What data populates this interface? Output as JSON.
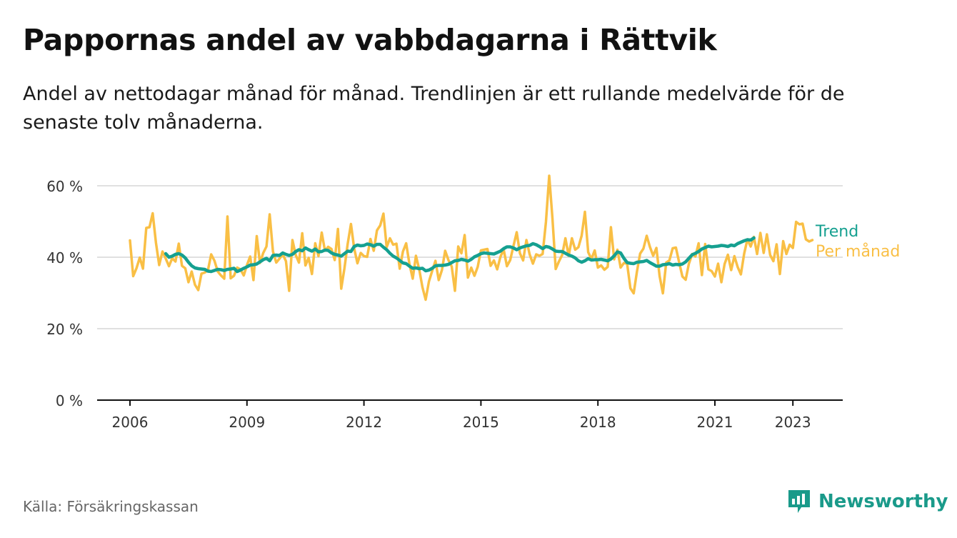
{
  "header": {
    "title": "Pappornas andel av vabbdagarna i Rättvik",
    "subtitle": "Andel av nettodagar månad för månad. Trendlinjen är ett rullande medelvärde för de senaste tolv månaderna."
  },
  "footer": {
    "source": "Källa: Försäkringskassan",
    "brand": "Newsworthy",
    "brand_icon": "newsworthy-logo-icon",
    "brand_color": "#1a9a8a"
  },
  "chart_data": {
    "type": "line",
    "title": "Pappornas andel av vabbdagarna i Rättvik",
    "xlabel": "",
    "ylabel": "",
    "x_range": [
      "2006-01",
      "2023-06"
    ],
    "ylim": [
      0,
      70
    ],
    "y_ticks": [
      0,
      20,
      40,
      60
    ],
    "y_tick_labels": [
      "0 %",
      "20 %",
      "40 %",
      "60 %"
    ],
    "x_ticks": [
      2006,
      2009,
      2012,
      2015,
      2018,
      2021,
      2023
    ],
    "x_tick_labels": [
      "2006",
      "2009",
      "2012",
      "2015",
      "2018",
      "2021",
      "2023"
    ],
    "grid": "horizontal",
    "legend": "end-of-line labels, right",
    "series": [
      {
        "name": "Trend",
        "color": "#15a090",
        "start": "2006-12",
        "values": [
          41.0,
          40.0,
          40.3,
          40.8,
          41.0,
          40.6,
          39.8,
          38.6,
          37.6,
          37.0,
          36.8,
          36.7,
          36.6,
          36.1,
          36.0,
          36.3,
          36.6,
          36.5,
          36.3,
          36.6,
          36.7,
          36.9,
          36.0,
          36.4,
          36.9,
          37.3,
          37.8,
          37.9,
          38.1,
          38.7,
          39.3,
          39.7,
          39.0,
          40.5,
          40.6,
          40.5,
          41.2,
          40.8,
          40.5,
          40.8,
          41.6,
          42.1,
          41.8,
          42.6,
          42.1,
          41.7,
          42.3,
          41.5,
          41.6,
          42.0,
          41.9,
          41.2,
          40.8,
          40.6,
          40.3,
          41.0,
          41.7,
          41.6,
          43.0,
          43.4,
          43.2,
          43.3,
          43.7,
          43.5,
          43.1,
          43.6,
          43.6,
          42.8,
          42.1,
          41.1,
          40.3,
          39.8,
          39.1,
          38.4,
          38.2,
          37.5,
          36.9,
          37.0,
          36.8,
          36.9,
          36.2,
          36.4,
          36.9,
          37.6,
          37.7,
          37.7,
          37.8,
          38.0,
          38.5,
          39.0,
          39.1,
          39.4,
          39.2,
          38.9,
          39.4,
          40.1,
          40.5,
          41.0,
          41.2,
          41.1,
          41.0,
          40.9,
          41.3,
          41.7,
          42.4,
          42.9,
          42.9,
          42.6,
          42.1,
          42.6,
          42.9,
          43.2,
          43.3,
          43.8,
          43.5,
          43.0,
          42.4,
          43.0,
          42.8,
          42.3,
          41.7,
          41.6,
          41.6,
          41.1,
          40.6,
          40.3,
          39.8,
          39.0,
          38.6,
          39.0,
          39.6,
          39.2,
          39.3,
          39.3,
          39.4,
          39.2,
          39.0,
          39.5,
          40.4,
          41.5,
          41.2,
          39.7,
          38.5,
          38.3,
          38.2,
          38.6,
          38.7,
          38.8,
          39.1,
          38.5,
          38.0,
          37.5,
          37.5,
          37.9,
          38.0,
          38.2,
          37.8,
          38.0,
          37.9,
          38.1,
          38.7,
          39.7,
          40.7,
          41.1,
          41.6,
          42.3,
          42.7,
          43.1,
          42.9,
          43.0,
          43.1,
          43.3,
          43.2,
          43.0,
          43.4,
          43.2,
          43.8,
          44.2,
          44.6,
          44.9,
          44.8,
          45.4
        ]
      },
      {
        "name": "Per månad",
        "color": "#f9bf45",
        "start": "2006-01",
        "values": [
          44.7,
          34.7,
          36.9,
          39.9,
          36.8,
          48.2,
          48.4,
          52.3,
          44.0,
          37.8,
          41.6,
          39.6,
          37.5,
          39.7,
          38.8,
          43.8,
          37.6,
          36.9,
          33.0,
          36.0,
          32.3,
          30.8,
          35.4,
          35.7,
          36.4,
          40.8,
          39.0,
          36.0,
          34.9,
          34.0,
          51.4,
          34.1,
          34.8,
          37.1,
          36.6,
          34.9,
          37.8,
          40.2,
          33.6,
          45.9,
          38.4,
          41.2,
          43.0,
          52.0,
          41.6,
          38.5,
          39.6,
          40.8,
          38.9,
          30.6,
          44.8,
          40.6,
          38.5,
          46.7,
          37.7,
          39.8,
          35.3,
          43.9,
          40.3,
          46.9,
          41.8,
          42.9,
          42.3,
          39.2,
          47.9,
          31.2,
          36.9,
          43.7,
          49.3,
          42.5,
          38.3,
          41.2,
          40.3,
          40.1,
          45.1,
          41.8,
          47.5,
          48.9,
          52.2,
          42.8,
          45.3,
          43.5,
          43.8,
          36.8,
          41.6,
          43.9,
          38.1,
          34.0,
          40.4,
          36.6,
          31.6,
          28.1,
          33.2,
          36.2,
          39.0,
          33.6,
          36.4,
          41.8,
          39.2,
          37.4,
          30.6,
          43.0,
          41.1,
          46.2,
          34.3,
          37.1,
          34.8,
          37.3,
          41.9,
          42.1,
          42.3,
          37.6,
          39.1,
          36.6,
          40.1,
          42.2,
          37.5,
          39.2,
          43.1,
          47.0,
          41.1,
          39.1,
          44.8,
          40.8,
          38.2,
          40.8,
          40.4,
          40.9,
          49.8,
          62.8,
          51.0,
          36.7,
          38.8,
          40.6,
          45.3,
          40.4,
          45.3,
          42.1,
          42.8,
          46.0,
          52.7,
          41.4,
          39.5,
          41.9,
          37.1,
          37.7,
          36.5,
          37.3,
          48.4,
          39.4,
          42.1,
          37.1,
          38.4,
          38.2,
          31.3,
          29.9,
          35.9,
          41.0,
          42.4,
          46.0,
          42.9,
          40.4,
          42.6,
          34.7,
          29.9,
          38.5,
          39.1,
          42.5,
          42.7,
          38.6,
          34.6,
          33.7,
          38.2,
          40.9,
          40.2,
          43.9,
          35.0,
          43.7,
          36.6,
          36.1,
          34.6,
          38.2,
          33.0,
          38.1,
          40.7,
          36.4,
          40.3,
          37.3,
          35.2,
          41.0,
          45.0,
          43.0,
          45.7,
          40.9,
          46.8,
          41.2,
          46.4,
          40.6,
          38.9,
          43.6,
          35.3,
          44.5,
          40.9,
          43.5,
          42.6,
          49.9,
          49.2,
          49.4,
          45.0,
          44.4,
          44.8
        ]
      }
    ]
  }
}
